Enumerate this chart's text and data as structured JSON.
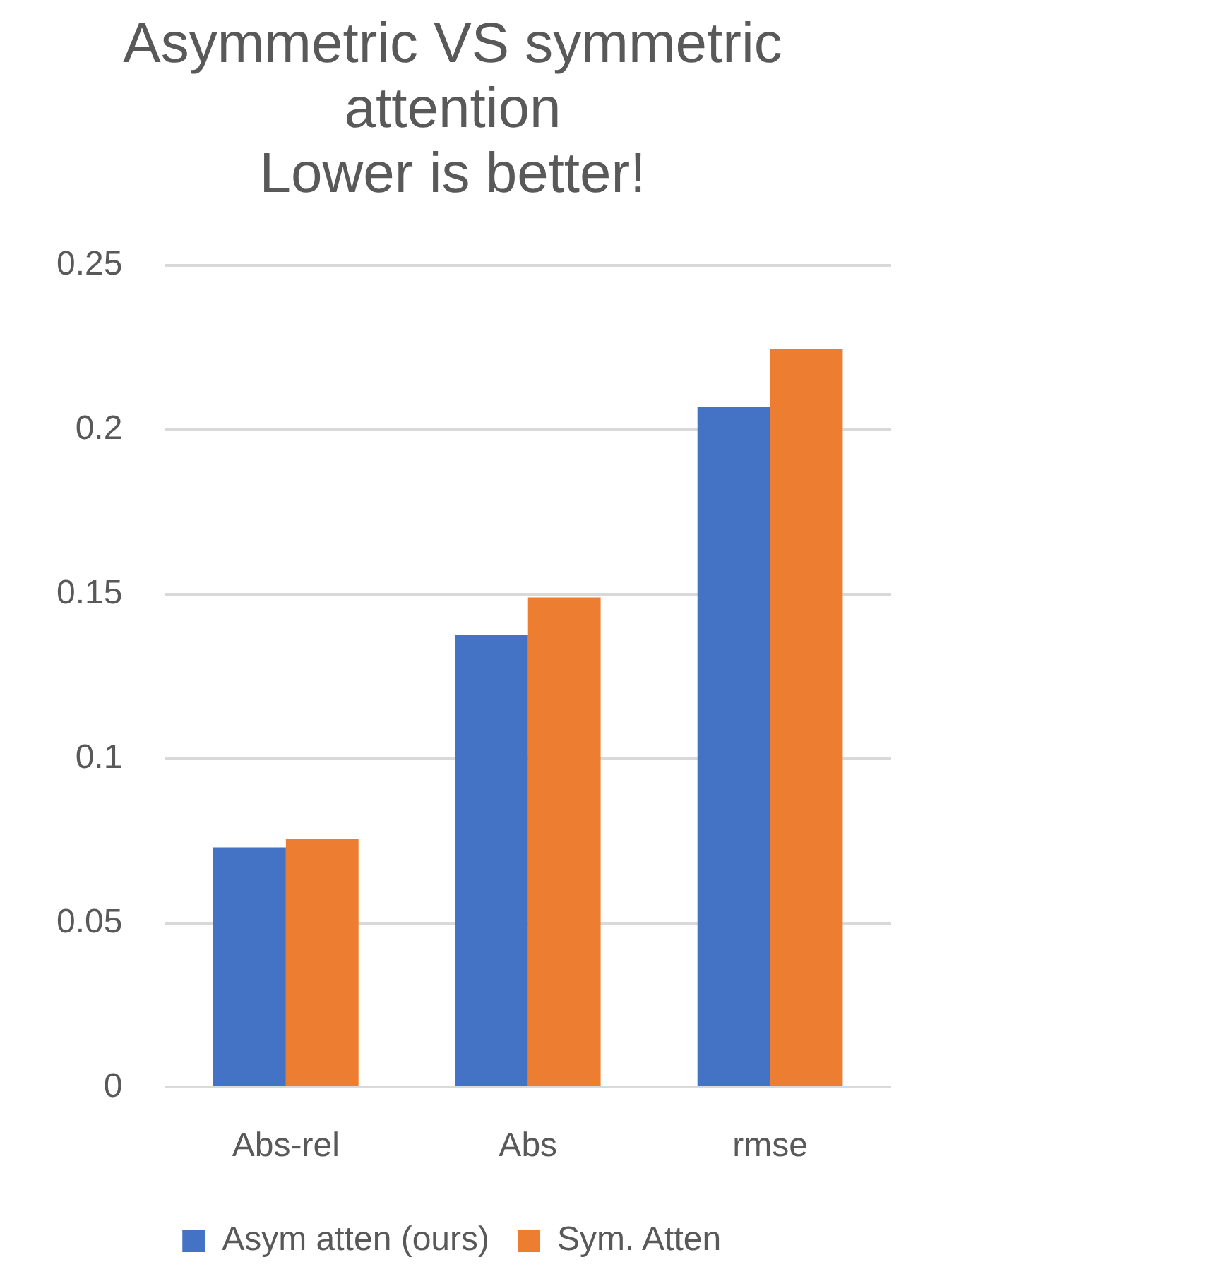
{
  "chart_data": {
    "type": "bar",
    "title": [
      "Asymmetric VS symmetric",
      "attention",
      "Lower is better!"
    ],
    "categories": [
      "Abs-rel",
      "Abs",
      "rmse"
    ],
    "series": [
      {
        "name": "Asym atten (ours)",
        "color": "#4472c4",
        "values": [
          0.073,
          0.1375,
          0.207
        ]
      },
      {
        "name": "Sym. Atten",
        "color": "#ed7d31",
        "values": [
          0.0755,
          0.149,
          0.2245
        ]
      }
    ],
    "ylim": [
      0,
      0.25
    ],
    "yticks": [
      0,
      0.05,
      0.1,
      0.15,
      0.2,
      0.25
    ],
    "grid": "y",
    "legend": "bottom"
  }
}
